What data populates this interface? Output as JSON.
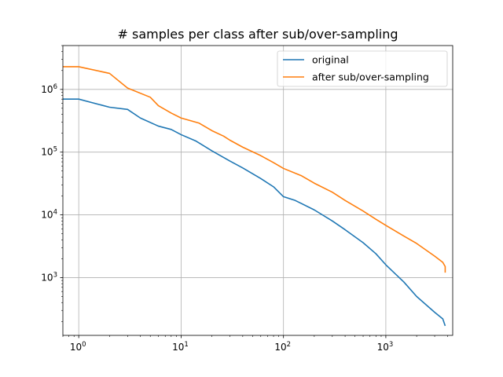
{
  "chart_data": {
    "type": "line",
    "title": "# samples per class after sub/over-sampling",
    "xlabel": "",
    "ylabel": "",
    "xscale": "log",
    "yscale": "log",
    "xlim": [
      0.7,
      4500
    ],
    "ylim": [
      120,
      5000000
    ],
    "grid": true,
    "legend_position": "top-right",
    "x_ticks": [
      {
        "value": 1,
        "base": "10",
        "exp": "0"
      },
      {
        "value": 10,
        "base": "10",
        "exp": "1"
      },
      {
        "value": 100,
        "base": "10",
        "exp": "2"
      },
      {
        "value": 1000,
        "base": "10",
        "exp": "3"
      }
    ],
    "y_ticks": [
      {
        "value": 1000,
        "base": "10",
        "exp": "3"
      },
      {
        "value": 10000,
        "base": "10",
        "exp": "4"
      },
      {
        "value": 100000,
        "base": "10",
        "exp": "5"
      },
      {
        "value": 1000000,
        "base": "10",
        "exp": "6"
      }
    ],
    "series": [
      {
        "name": "original",
        "color": "#1f77b4",
        "x": [
          0.7,
          1,
          2,
          3,
          4,
          6,
          8,
          10,
          14,
          20,
          30,
          40,
          60,
          80,
          100,
          130,
          200,
          300,
          400,
          600,
          800,
          1000,
          1500,
          2000,
          3000,
          3600,
          3800
        ],
        "y": [
          700000,
          700000,
          520000,
          480000,
          350000,
          260000,
          230000,
          190000,
          150000,
          105000,
          72000,
          56000,
          38000,
          28000,
          19500,
          17000,
          12000,
          8000,
          5800,
          3600,
          2400,
          1600,
          850,
          500,
          280,
          220,
          170
        ]
      },
      {
        "name": "after sub/over-sampling",
        "color": "#ff7f0e",
        "x": [
          0.7,
          1,
          2,
          3,
          5,
          6,
          8,
          10,
          15,
          20,
          26,
          30,
          40,
          60,
          80,
          100,
          150,
          200,
          300,
          400,
          600,
          800,
          1000,
          1500,
          2000,
          3000,
          3600,
          3800,
          3800
        ],
        "y": [
          2300000,
          2300000,
          1800000,
          1050000,
          750000,
          550000,
          420000,
          350000,
          290000,
          220000,
          180000,
          155000,
          120000,
          88000,
          68000,
          55000,
          42000,
          32000,
          23000,
          17000,
          11500,
          8500,
          6800,
          4600,
          3500,
          2200,
          1750,
          1500,
          1200
        ]
      }
    ]
  }
}
